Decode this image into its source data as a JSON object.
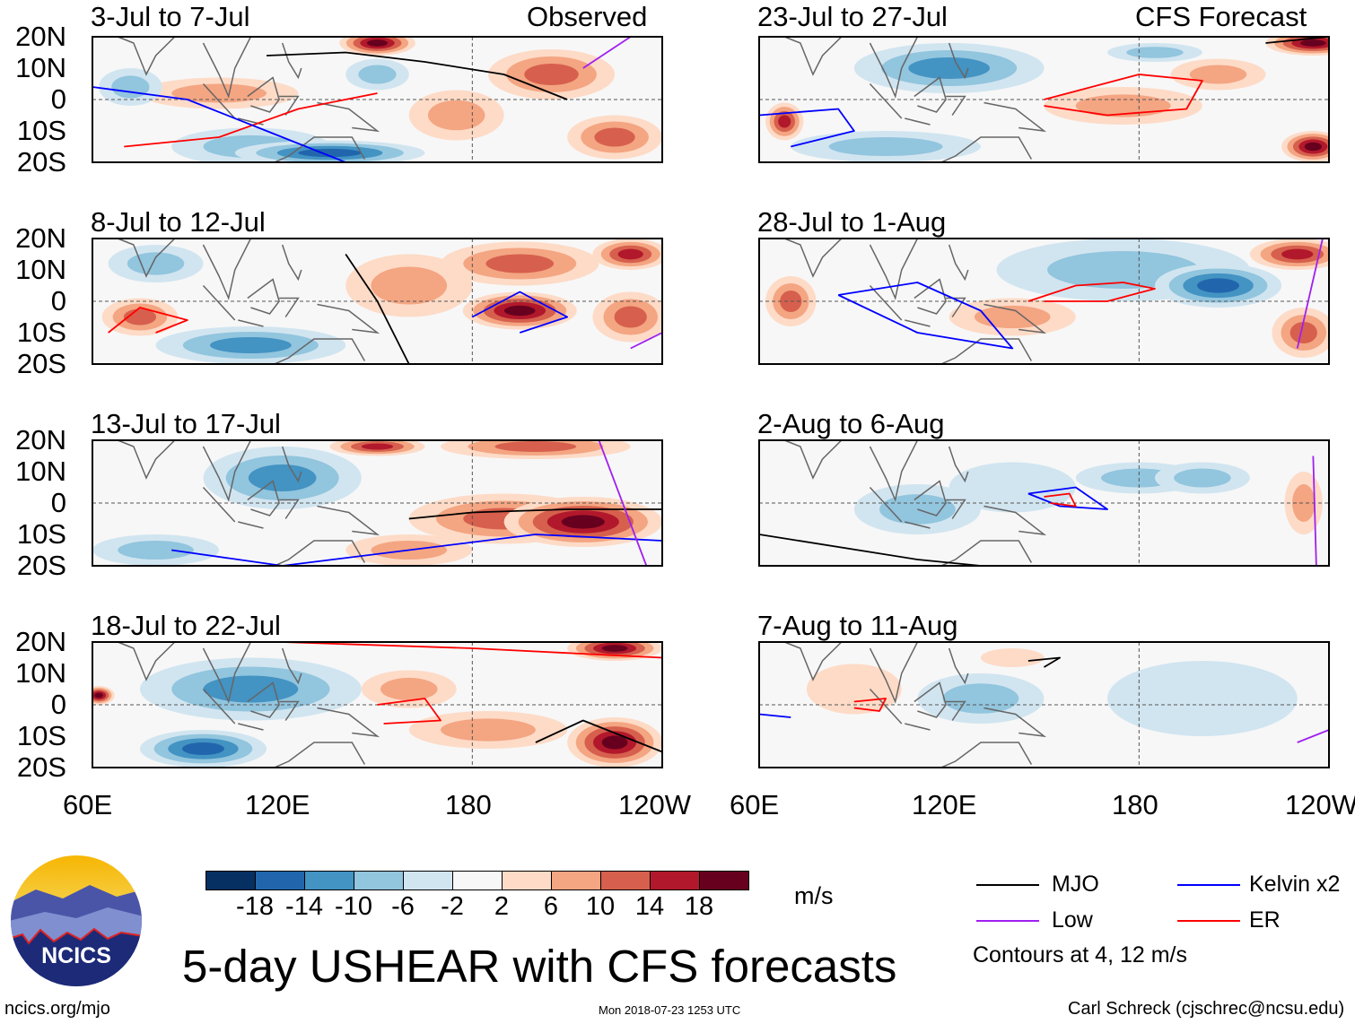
{
  "title": "5-day USHEAR with CFS forecasts",
  "column_labels": {
    "observed": "Observed",
    "forecast": "CFS Forecast"
  },
  "lat_labels": [
    "20N",
    "10N",
    "0",
    "10S",
    "20S"
  ],
  "lon_labels": [
    "60E",
    "120E",
    "180",
    "120W"
  ],
  "colorbar": {
    "ticks": [
      "-18",
      "-14",
      "-10",
      "-6",
      "-2",
      "2",
      "6",
      "10",
      "14",
      "18"
    ],
    "units": "m/s",
    "colors": [
      "#053061",
      "#2166ac",
      "#4393c3",
      "#92c5de",
      "#d1e5f0",
      "#f7f7f7",
      "#fddbc7",
      "#f4a582",
      "#d6604d",
      "#b2182b",
      "#67001f"
    ]
  },
  "legend": {
    "mjo": "MJO",
    "kelvin": "Kelvin x2",
    "low": "Low",
    "er": "ER",
    "note": "Contours at 4, 12 m/s",
    "colors": {
      "mjo": "#000000",
      "kelvin": "#0000ff",
      "low": "#a020f0",
      "er": "#ff0000"
    }
  },
  "footer": {
    "url": "ncics.org/mjo",
    "timestamp": "Mon 2018-07-23 1253 UTC",
    "author": "Carl Schreck (cjschrec@ncsu.edu)"
  },
  "logo": {
    "text": "NCICS"
  },
  "chart_data": {
    "type": "heatmap",
    "variable": "USHEAR anomaly",
    "units": "m/s",
    "xlim": [
      60,
      240
    ],
    "ylim": [
      -20,
      20
    ],
    "panels": [
      {
        "label": "3-Jul to 7-Jul",
        "kind": "Observed",
        "blobs": [
          [
            150,
            18,
            12,
            4,
            18
          ],
          [
            150,
            8,
            10,
            5,
            -6
          ],
          [
            135,
            -17,
            30,
            4,
            -14
          ],
          [
            110,
            -15,
            25,
            6,
            -6
          ],
          [
            205,
            8,
            20,
            8,
            10
          ],
          [
            100,
            2,
            25,
            5,
            6
          ],
          [
            72,
            4,
            10,
            6,
            -6
          ],
          [
            225,
            -12,
            15,
            7,
            10
          ],
          [
            175,
            -5,
            15,
            8,
            6
          ]
        ],
        "contours": [
          [
            "mjo",
            [
              [
                115,
                14
              ],
              [
                140,
                15
              ],
              [
                165,
                12
              ],
              [
                190,
                8
              ],
              [
                210,
                0
              ]
            ]
          ],
          [
            "er",
            [
              [
                70,
                -15
              ],
              [
                100,
                -12
              ],
              [
                125,
                -3
              ],
              [
                150,
                2
              ]
            ]
          ],
          [
            "kelvin",
            [
              [
                60,
                4
              ],
              [
                90,
                0
              ],
              [
                115,
                -10
              ],
              [
                140,
                -20
              ]
            ]
          ],
          [
            "low",
            [
              [
                230,
                20
              ],
              [
                215,
                10
              ]
            ]
          ]
        ]
      },
      {
        "label": "8-Jul to 12-Jul",
        "kind": "Observed",
        "blobs": [
          [
            195,
            -3,
            18,
            6,
            18
          ],
          [
            195,
            12,
            25,
            7,
            10
          ],
          [
            230,
            15,
            12,
            5,
            14
          ],
          [
            75,
            -5,
            12,
            6,
            10
          ],
          [
            110,
            -14,
            30,
            6,
            -10
          ],
          [
            80,
            12,
            15,
            6,
            -6
          ],
          [
            160,
            5,
            20,
            10,
            6
          ],
          [
            230,
            -5,
            12,
            8,
            10
          ]
        ],
        "contours": [
          [
            "er",
            [
              [
                65,
                -10
              ],
              [
                75,
                -2
              ],
              [
                90,
                -6
              ],
              [
                80,
                -10
              ]
            ]
          ],
          [
            "kelvin",
            [
              [
                180,
                -5
              ],
              [
                195,
                3
              ],
              [
                210,
                -5
              ],
              [
                195,
                -10
              ]
            ]
          ],
          [
            "mjo",
            [
              [
                140,
                15
              ],
              [
                150,
                0
              ],
              [
                160,
                -20
              ]
            ]
          ],
          [
            "low",
            [
              [
                230,
                -15
              ],
              [
                240,
                -10
              ]
            ]
          ]
        ]
      },
      {
        "label": "13-Jul to 17-Jul",
        "kind": "Observed",
        "blobs": [
          [
            215,
            -6,
            25,
            8,
            18
          ],
          [
            190,
            -5,
            30,
            8,
            10
          ],
          [
            200,
            18,
            30,
            4,
            10
          ],
          [
            150,
            18,
            15,
            3,
            14
          ],
          [
            120,
            8,
            25,
            10,
            -10
          ],
          [
            80,
            -15,
            20,
            5,
            -6
          ],
          [
            160,
            -15,
            20,
            5,
            6
          ]
        ],
        "contours": [
          [
            "mjo",
            [
              [
                160,
                -5
              ],
              [
                180,
                -3
              ],
              [
                210,
                -2
              ],
              [
                240,
                -2
              ]
            ]
          ],
          [
            "kelvin",
            [
              [
                85,
                -15
              ],
              [
                120,
                -20
              ],
              [
                200,
                -10
              ],
              [
                240,
                -12
              ]
            ]
          ],
          [
            "low",
            [
              [
                220,
                20
              ],
              [
                235,
                -20
              ]
            ]
          ]
        ]
      },
      {
        "label": "18-Jul to 22-Jul",
        "kind": "Observed",
        "blobs": [
          [
            225,
            -12,
            15,
            8,
            18
          ],
          [
            225,
            18,
            15,
            4,
            18
          ],
          [
            110,
            5,
            35,
            10,
            -10
          ],
          [
            95,
            -14,
            20,
            6,
            -14
          ],
          [
            62,
            3,
            5,
            3,
            18
          ],
          [
            185,
            -8,
            25,
            6,
            6
          ],
          [
            160,
            5,
            15,
            6,
            6
          ]
        ],
        "contours": [
          [
            "er",
            [
              [
                120,
                20
              ],
              [
                180,
                18
              ],
              [
                240,
                15
              ]
            ]
          ],
          [
            "mjo",
            [
              [
                200,
                -12
              ],
              [
                215,
                -5
              ],
              [
                240,
                -15
              ]
            ]
          ],
          [
            "er",
            [
              [
                150,
                0
              ],
              [
                165,
                2
              ],
              [
                170,
                -5
              ],
              [
                152,
                -6
              ]
            ]
          ]
        ]
      },
      {
        "label": "23-Jul to 27-Jul",
        "kind": "CFS Forecast",
        "blobs": [
          [
            235,
            18,
            15,
            4,
            18
          ],
          [
            235,
            -15,
            10,
            5,
            18
          ],
          [
            68,
            -7,
            6,
            6,
            14
          ],
          [
            120,
            10,
            30,
            8,
            -10
          ],
          [
            100,
            -15,
            30,
            5,
            -6
          ],
          [
            175,
            -2,
            25,
            6,
            6
          ],
          [
            205,
            8,
            15,
            5,
            6
          ],
          [
            185,
            15,
            15,
            3,
            -6
          ]
        ],
        "contours": [
          [
            "er",
            [
              [
                150,
                0
              ],
              [
                180,
                8
              ],
              [
                200,
                6
              ],
              [
                195,
                -3
              ],
              [
                170,
                -5
              ],
              [
                150,
                -2
              ]
            ]
          ],
          [
            "kelvin",
            [
              [
                60,
                -5
              ],
              [
                85,
                -3
              ],
              [
                90,
                -10
              ],
              [
                70,
                -15
              ]
            ]
          ],
          [
            "mjo",
            [
              [
                220,
                18
              ],
              [
                240,
                20
              ]
            ]
          ]
        ]
      },
      {
        "label": "28-Jul to 1-Aug",
        "kind": "CFS Forecast",
        "blobs": [
          [
            205,
            5,
            20,
            7,
            -14
          ],
          [
            175,
            10,
            40,
            10,
            -6
          ],
          [
            230,
            15,
            15,
            5,
            14
          ],
          [
            232,
            -10,
            10,
            8,
            10
          ],
          [
            70,
            0,
            8,
            8,
            10
          ],
          [
            140,
            -5,
            20,
            6,
            6
          ]
        ],
        "contours": [
          [
            "er",
            [
              [
                145,
                0
              ],
              [
                160,
                5
              ],
              [
                175,
                6
              ],
              [
                185,
                4
              ],
              [
                170,
                0
              ],
              [
                150,
                0
              ]
            ]
          ],
          [
            "kelvin",
            [
              [
                85,
                2
              ],
              [
                110,
                6
              ],
              [
                130,
                -3
              ],
              [
                140,
                -15
              ],
              [
                110,
                -10
              ],
              [
                85,
                2
              ]
            ]
          ],
          [
            "low",
            [
              [
                230,
                -15
              ],
              [
                238,
                20
              ]
            ]
          ]
        ]
      },
      {
        "label": "2-Aug to 6-Aug",
        "kind": "CFS Forecast",
        "blobs": [
          [
            180,
            8,
            20,
            5,
            -6
          ],
          [
            200,
            8,
            15,
            5,
            -6
          ],
          [
            110,
            -2,
            20,
            8,
            -6
          ],
          [
            140,
            5,
            20,
            8,
            -2
          ],
          [
            232,
            0,
            6,
            10,
            6
          ]
        ],
        "contours": [
          [
            "kelvin",
            [
              [
                145,
                3
              ],
              [
                160,
                5
              ],
              [
                170,
                -2
              ],
              [
                155,
                -1
              ],
              [
                145,
                3
              ]
            ]
          ],
          [
            "er",
            [
              [
                150,
                2
              ],
              [
                158,
                3
              ],
              [
                160,
                -1
              ],
              [
                152,
                0
              ]
            ]
          ],
          [
            "mjo",
            [
              [
                60,
                -10
              ],
              [
                110,
                -18
              ],
              [
                130,
                -20
              ]
            ]
          ],
          [
            "low",
            [
              [
                235,
                15
              ],
              [
                236,
                -20
              ]
            ]
          ]
        ]
      },
      {
        "label": "7-Aug to 11-Aug",
        "kind": "CFS Forecast",
        "blobs": [
          [
            130,
            2,
            20,
            8,
            -6
          ],
          [
            200,
            2,
            30,
            12,
            -2
          ],
          [
            90,
            5,
            15,
            8,
            2
          ],
          [
            140,
            15,
            10,
            3,
            2
          ]
        ],
        "contours": [
          [
            "mjo",
            [
              [
                145,
                14
              ],
              [
                155,
                15
              ],
              [
                150,
                12
              ]
            ]
          ],
          [
            "er",
            [
              [
                90,
                1
              ],
              [
                100,
                2
              ],
              [
                98,
                -2
              ],
              [
                90,
                -1
              ]
            ]
          ],
          [
            "kelvin",
            [
              [
                60,
                -3
              ],
              [
                70,
                -4
              ]
            ]
          ],
          [
            "low",
            [
              [
                230,
                -12
              ],
              [
                240,
                -8
              ]
            ]
          ]
        ]
      }
    ]
  }
}
